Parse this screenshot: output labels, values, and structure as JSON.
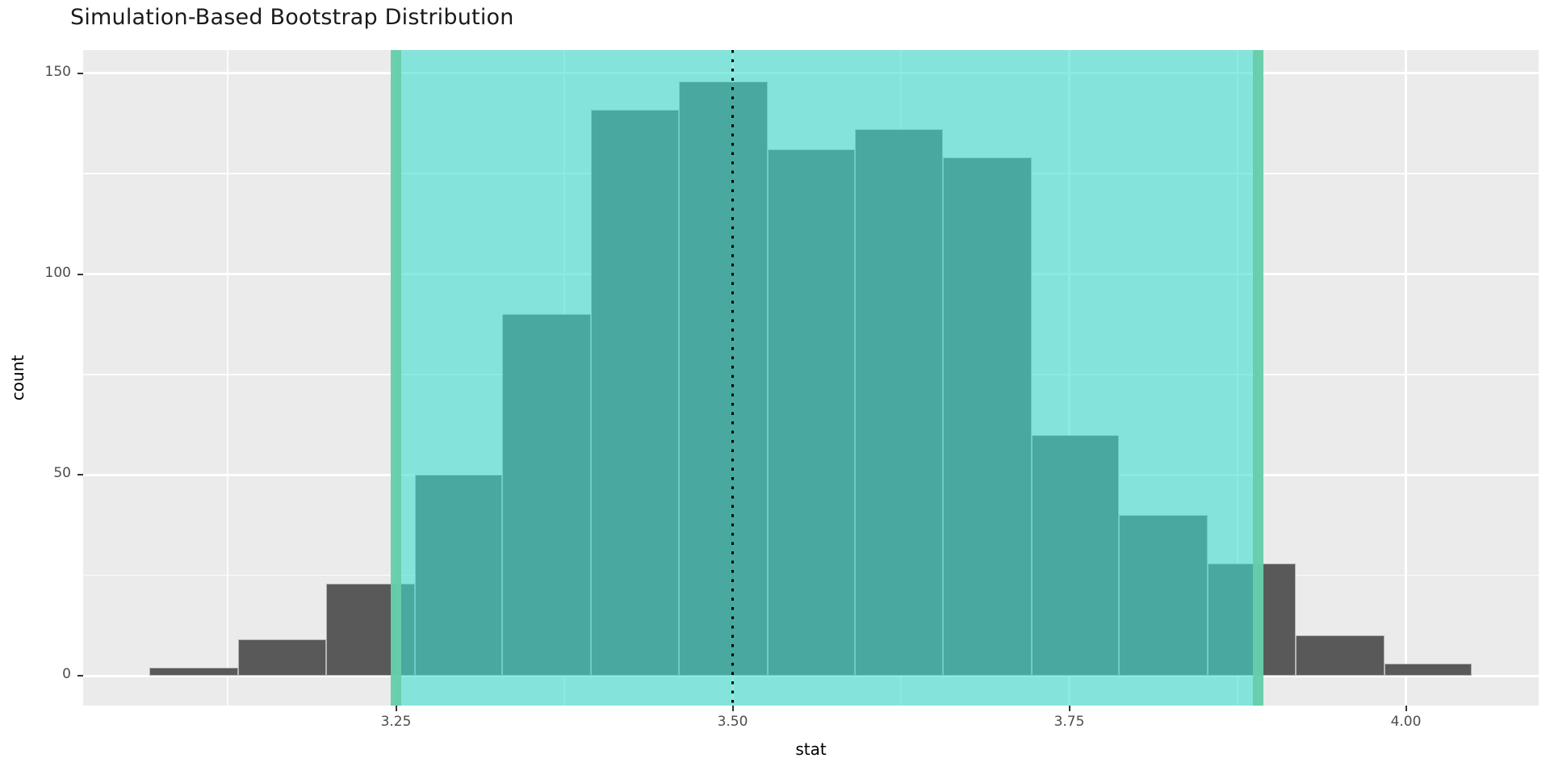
{
  "title": "Simulation-Based Bootstrap Distribution",
  "x_axis": {
    "label": "stat",
    "tick_labels": [
      "3.25",
      "3.50",
      "3.75",
      "4.00"
    ],
    "tick_values": [
      3.25,
      3.5,
      3.75,
      4.0
    ]
  },
  "y_axis": {
    "label": "count",
    "tick_labels": [
      "0",
      "50",
      "100",
      "150"
    ],
    "tick_values": [
      0,
      50,
      100,
      150
    ]
  },
  "chart_data": {
    "type": "bar",
    "subtype": "histogram",
    "title": "Simulation-Based Bootstrap Distribution",
    "xlabel": "stat",
    "ylabel": "count",
    "bin_edges": [
      3.067,
      3.133,
      3.198,
      3.264,
      3.329,
      3.395,
      3.46,
      3.526,
      3.591,
      3.656,
      3.722,
      3.787,
      3.853,
      3.918,
      3.984,
      4.049
    ],
    "counts": [
      2,
      9,
      23,
      50,
      90,
      141,
      148,
      131,
      136,
      129,
      60,
      40,
      28,
      10,
      3
    ],
    "point_estimate": 3.5,
    "confidence_interval": {
      "lower": 3.25,
      "upper": 3.89
    },
    "xlim": [
      3.018,
      4.101
    ],
    "ylim": [
      -7.4,
      155.8
    ],
    "x_ticks": [
      3.25,
      3.5,
      3.75,
      4.0
    ],
    "y_ticks": [
      0,
      50,
      100,
      150
    ],
    "grid": true,
    "legend": false,
    "annotations": [
      "shaded confidence interval band",
      "dotted vertical line at point estimate"
    ]
  },
  "colors": {
    "bar_fill": "#595959",
    "ci_shade_fill": "#40E0D0",
    "ci_line": "#66CDAA",
    "point_estimate_line": "#000000",
    "panel_background": "#EBEBEB",
    "gridline": "#FFFFFF",
    "tick_label_text": "#4D4D4D",
    "title_text": "#1A1A1A"
  }
}
